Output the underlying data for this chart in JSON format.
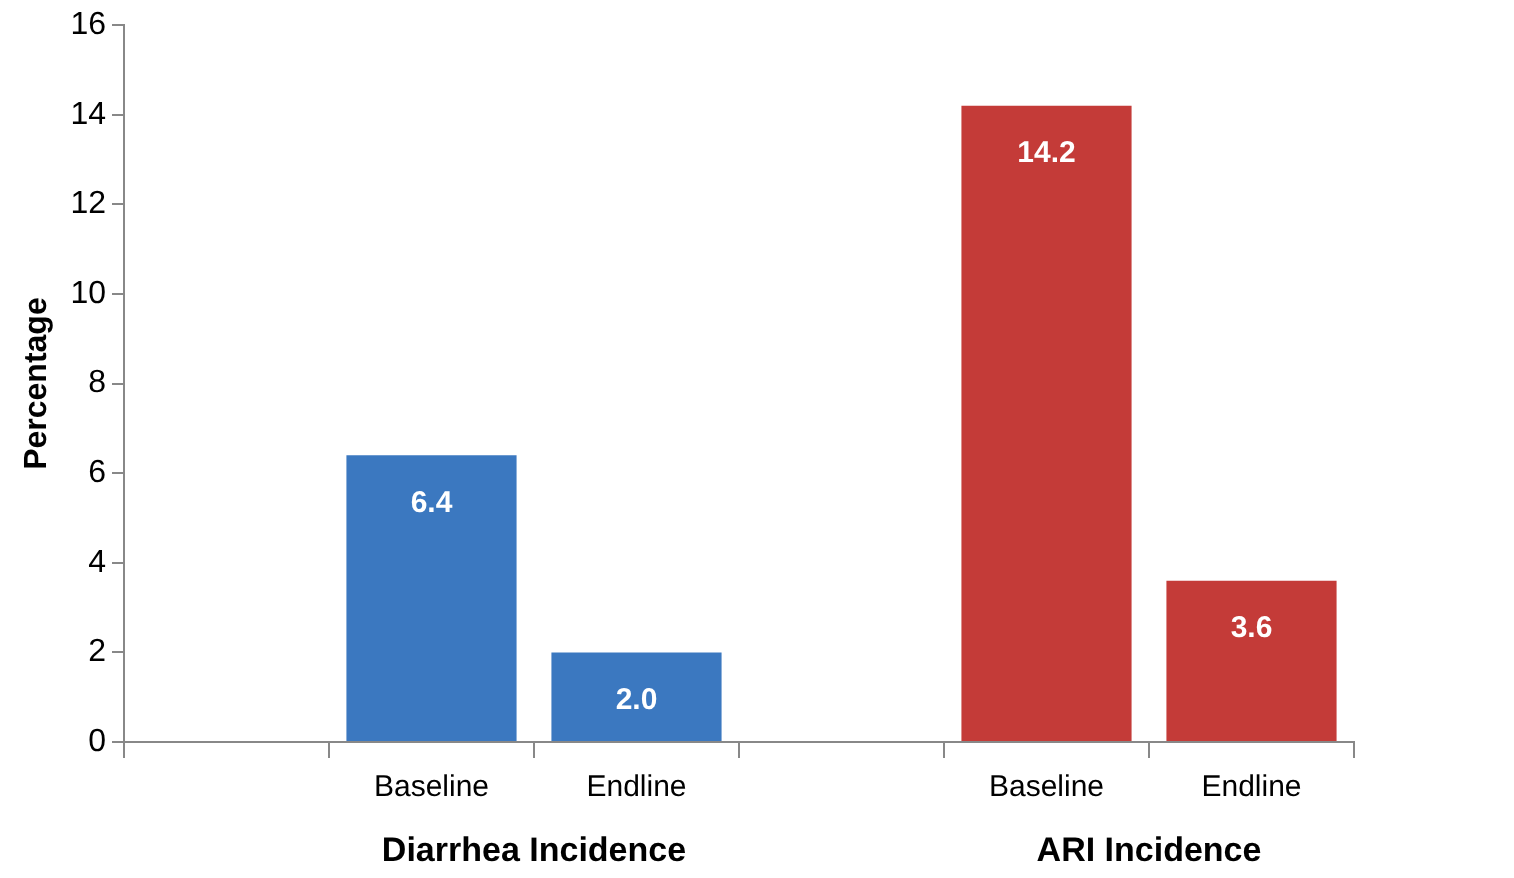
{
  "chart_data": {
    "type": "bar",
    "ylabel": "Percentage",
    "categories": [
      null,
      "Baseline",
      "Endline",
      null,
      "Baseline",
      "Endline"
    ],
    "series": [
      {
        "name": "Diarrhea Incidence",
        "color": "#3b78c0",
        "values": [
          null,
          6.4,
          2.0,
          null,
          null,
          null
        ],
        "value_labels": [
          null,
          "6.4",
          "2.0",
          null,
          null,
          null
        ]
      },
      {
        "name": "ARI Incidence",
        "color": "#c43b38",
        "values": [
          null,
          null,
          null,
          null,
          14.2,
          3.6
        ],
        "value_labels": [
          null,
          null,
          null,
          null,
          "14.2",
          "3.6"
        ]
      }
    ],
    "ylim": [
      0,
      16
    ],
    "yticks": [
      0,
      2,
      4,
      6,
      8,
      10,
      12,
      14,
      16
    ],
    "grid": false,
    "legend": false
  }
}
